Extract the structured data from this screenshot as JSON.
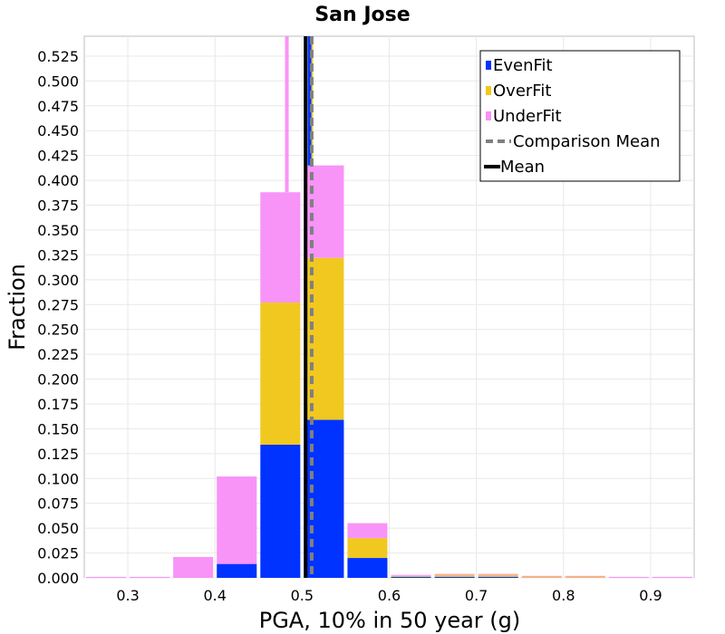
{
  "chart_data": {
    "type": "bar",
    "stacked": true,
    "title": "San Jose",
    "xlabel": "PGA, 10% in 50 year (g)",
    "ylabel": "Fraction",
    "xlim": [
      0.25,
      0.95
    ],
    "ylim": [
      0.0,
      0.545
    ],
    "x_ticks": [
      "0.3",
      "0.4",
      "0.5",
      "0.6",
      "0.7",
      "0.8",
      "0.9"
    ],
    "y_ticks": [
      "0.000",
      "0.025",
      "0.050",
      "0.075",
      "0.100",
      "0.125",
      "0.150",
      "0.175",
      "0.200",
      "0.225",
      "0.250",
      "0.275",
      "0.300",
      "0.325",
      "0.350",
      "0.375",
      "0.400",
      "0.425",
      "0.450",
      "0.475",
      "0.500",
      "0.525"
    ],
    "grid": true,
    "bin_width": 0.05,
    "bin_centers": [
      0.275,
      0.325,
      0.375,
      0.425,
      0.475,
      0.525,
      0.575,
      0.625,
      0.675,
      0.725,
      0.775,
      0.825,
      0.875,
      0.925
    ],
    "series": [
      {
        "name": "EvenFit",
        "color": "#0033ff",
        "values": [
          0.0,
          0.0,
          0.0,
          0.014,
          0.134,
          0.159,
          0.02,
          0.001,
          0.001,
          0.001,
          0.0,
          0.0,
          0.0,
          0.0
        ]
      },
      {
        "name": "OverFit",
        "color": "#f0c820",
        "values": [
          0.0,
          0.0,
          0.0,
          0.0,
          0.143,
          0.163,
          0.02,
          0.001,
          0.002,
          0.002,
          0.001,
          0.001,
          0.0,
          0.0
        ]
      },
      {
        "name": "UnderFit",
        "color": "#f893f8",
        "values": [
          0.001,
          0.001,
          0.021,
          0.088,
          0.111,
          0.093,
          0.015,
          0.001,
          0.001,
          0.001,
          0.001,
          0.001,
          0.001,
          0.001
        ]
      }
    ],
    "reference_lines": [
      {
        "name": "Comparison Mean",
        "x": 0.511,
        "color": "#808080",
        "style": "dashed"
      },
      {
        "name": "Mean",
        "x": 0.504,
        "color": "#000000",
        "style": "solid"
      }
    ],
    "extra_markers": [
      {
        "name": "UnderFit",
        "x": 0.4825,
        "y_from": 0.388,
        "y_to": 0.545,
        "color": "#f893f8"
      },
      {
        "name": "OverFit",
        "x": 0.5105,
        "y_from": 0.415,
        "y_to": 0.545,
        "color": "#f0c820"
      },
      {
        "name": "EvenFit",
        "x": 0.5085,
        "y_from": 0.415,
        "y_to": 0.545,
        "color": "#0033ff"
      }
    ],
    "legend": {
      "position": "top-right",
      "entries": [
        {
          "label": "EvenFit",
          "color": "#0033ff",
          "kind": "box"
        },
        {
          "label": "OverFit",
          "color": "#f0c820",
          "kind": "box"
        },
        {
          "label": "UnderFit",
          "color": "#f893f8",
          "kind": "box"
        },
        {
          "label": "Comparison Mean",
          "color": "#808080",
          "kind": "dashed"
        },
        {
          "label": "Mean",
          "color": "#000000",
          "kind": "line"
        }
      ]
    }
  }
}
